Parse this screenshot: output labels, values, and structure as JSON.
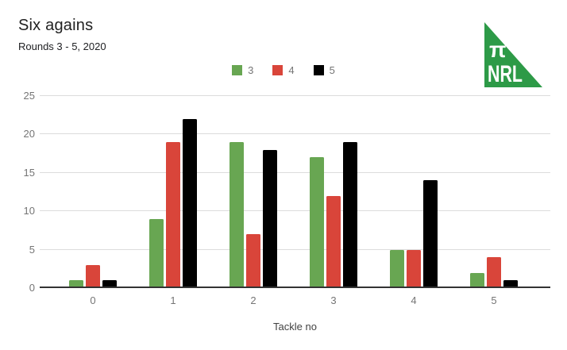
{
  "header": {
    "title": "Six agains",
    "subtitle": "Rounds 3 - 5, 2020"
  },
  "logo": {
    "pi": "π",
    "text": "NRL",
    "background": "#2d9a47",
    "text_color": "#ffffff"
  },
  "chart_data": {
    "type": "bar",
    "title": "Six agains",
    "subtitle": "Rounds 3 - 5, 2020",
    "categories": [
      "0",
      "1",
      "2",
      "3",
      "4",
      "5"
    ],
    "series": [
      {
        "name": "3",
        "color": "#68a652",
        "values": [
          1,
          9,
          19,
          17,
          5,
          2
        ]
      },
      {
        "name": "4",
        "color": "#d9453a",
        "values": [
          3,
          19,
          7,
          12,
          5,
          4
        ]
      },
      {
        "name": "5",
        "color": "#000000",
        "values": [
          1,
          22,
          18,
          19,
          14,
          1
        ]
      }
    ],
    "xlabel": "Tackle no",
    "ylabel": "",
    "ylim": [
      0,
      25
    ],
    "yticks": [
      0,
      5,
      10,
      15,
      20,
      25
    ],
    "grid": true,
    "legend_position": "top",
    "colors": {
      "gridline": "#dcdcdc",
      "axis_line": "#333333",
      "tick_label": "#757575",
      "axis_title": "#424242"
    }
  }
}
